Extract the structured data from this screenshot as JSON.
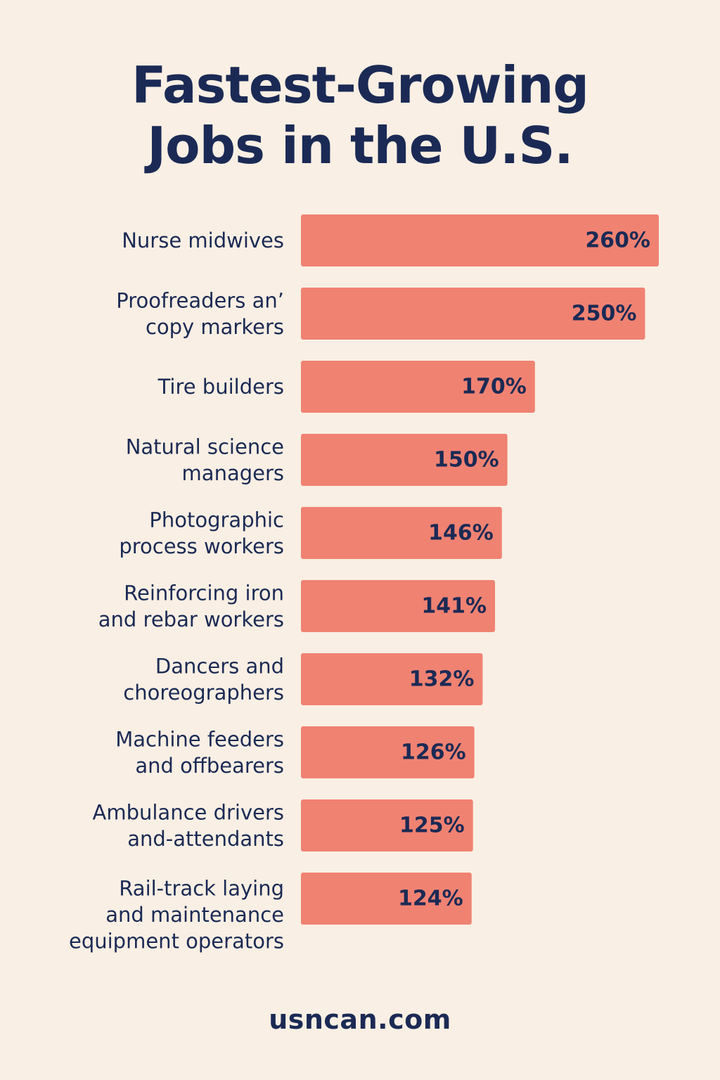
{
  "title": {
    "line1": "Fastest-Growing",
    "line2": "Jobs in the U.S."
  },
  "footer": "usncan.com",
  "colors": {
    "background": "#f9efe4",
    "bar": "#f08272",
    "text": "#1b2a55"
  },
  "chart_data": {
    "type": "bar",
    "orientation": "horizontal",
    "categories": [
      [
        "Nurse midwives"
      ],
      [
        "Proofreaders an’",
        "copy markers"
      ],
      [
        "Tire builders"
      ],
      [
        "Natural science",
        "managers"
      ],
      [
        "Photographic",
        "process workers"
      ],
      [
        "Reinforcing iron",
        "and rebar workers"
      ],
      [
        "Dancers and",
        "choreographers"
      ],
      [
        "Machine feeders",
        "and offbearers"
      ],
      [
        "Ambulance drivers",
        "and-attendants"
      ],
      [
        "Rail-track laying",
        "and maintenance",
        "equipment operators"
      ]
    ],
    "values": [
      260,
      250,
      170,
      150,
      146,
      141,
      132,
      126,
      125,
      124
    ],
    "value_labels": [
      "260%",
      "250%",
      "170%",
      "150%",
      "146%",
      "141%",
      "132%",
      "126%",
      "125%",
      "124%"
    ],
    "title": "Fastest-Growing Jobs in the U.S.",
    "xlabel": "",
    "ylabel": "",
    "grid": false,
    "legend": "none"
  }
}
